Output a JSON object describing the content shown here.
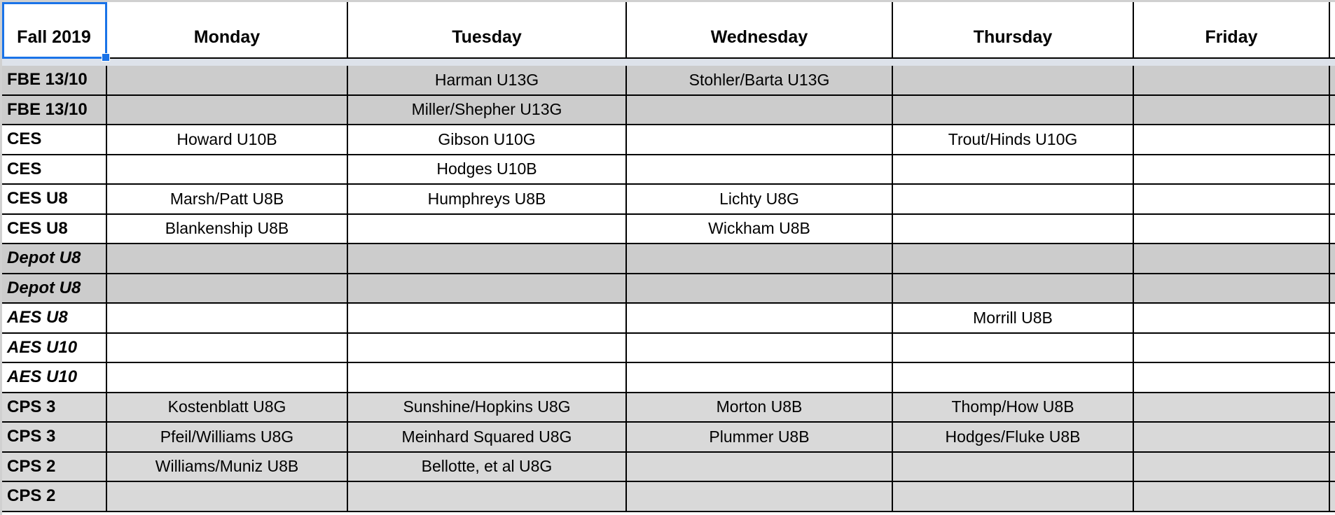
{
  "sheet": {
    "headers": [
      "Fall 2019",
      "Monday",
      "Tuesday",
      "Wednesday",
      "Thursday",
      "Friday"
    ],
    "selected_cell": "Fall 2019",
    "colors": {
      "selection": "#1a73e8",
      "shade_dark": "#cccccc",
      "shade_light": "#d9d9d9",
      "freeze_band": "#dde2ea"
    },
    "rows": [
      {
        "label": "FBE 13/10",
        "italic": false,
        "shade": "dark",
        "cells": [
          "",
          "Harman U13G",
          "Stohler/Barta U13G",
          "",
          ""
        ]
      },
      {
        "label": "FBE 13/10",
        "italic": false,
        "shade": "dark",
        "cells": [
          "",
          "Miller/Shepher U13G",
          "",
          "",
          ""
        ]
      },
      {
        "label": "CES",
        "italic": false,
        "shade": "none",
        "cells": [
          "Howard U10B",
          "Gibson U10G",
          "",
          "Trout/Hinds U10G",
          ""
        ]
      },
      {
        "label": "CES",
        "italic": false,
        "shade": "none",
        "cells": [
          "",
          "Hodges U10B",
          "",
          "",
          ""
        ]
      },
      {
        "label": "CES U8",
        "italic": false,
        "shade": "none",
        "cells": [
          "Marsh/Patt U8B",
          "Humphreys U8B",
          "Lichty U8G",
          "",
          ""
        ]
      },
      {
        "label": "CES U8",
        "italic": false,
        "shade": "none",
        "cells": [
          "Blankenship U8B",
          "",
          "Wickham U8B",
          "",
          ""
        ]
      },
      {
        "label": "Depot U8",
        "italic": true,
        "shade": "dark",
        "cells": [
          "",
          "",
          "",
          "",
          ""
        ]
      },
      {
        "label": "Depot U8",
        "italic": true,
        "shade": "dark",
        "cells": [
          "",
          "",
          "",
          "",
          ""
        ]
      },
      {
        "label": "AES U8",
        "italic": true,
        "shade": "none",
        "cells": [
          "",
          "",
          "",
          "Morrill U8B",
          ""
        ]
      },
      {
        "label": "AES U10",
        "italic": true,
        "shade": "none",
        "cells": [
          "",
          "",
          "",
          "",
          ""
        ]
      },
      {
        "label": "AES U10",
        "italic": true,
        "shade": "none",
        "cells": [
          "",
          "",
          "",
          "",
          ""
        ]
      },
      {
        "label": "CPS 3",
        "italic": false,
        "shade": "light",
        "cells": [
          "Kostenblatt U8G",
          "Sunshine/Hopkins U8G",
          "Morton U8B",
          "Thomp/How U8B",
          ""
        ]
      },
      {
        "label": "CPS 3",
        "italic": false,
        "shade": "light",
        "cells": [
          "Pfeil/Williams U8G",
          "Meinhard Squared U8G",
          "Plummer U8B",
          "Hodges/Fluke U8B",
          ""
        ]
      },
      {
        "label": "CPS 2",
        "italic": false,
        "shade": "light",
        "cells": [
          "Williams/Muniz U8B",
          "Bellotte, et al U8G",
          "",
          "",
          ""
        ]
      },
      {
        "label": "CPS 2",
        "italic": false,
        "shade": "light",
        "cells": [
          "",
          "",
          "",
          "",
          ""
        ]
      }
    ]
  }
}
